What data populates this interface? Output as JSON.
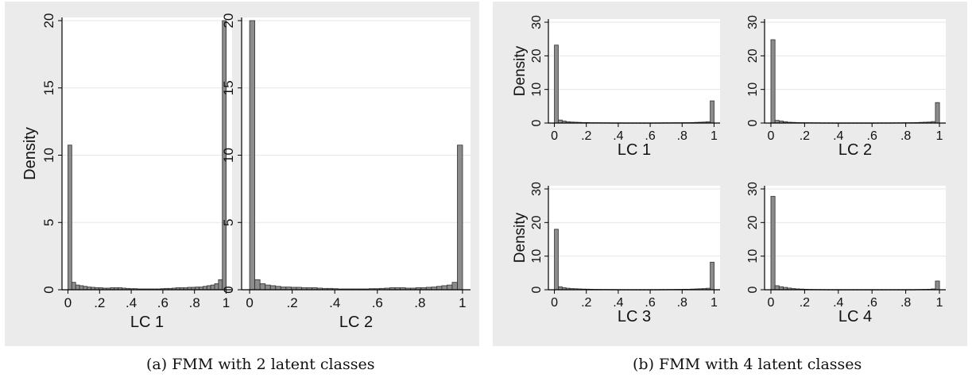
{
  "figure": {
    "caption_a": "(a) FMM with 2 latent classes",
    "caption_b": "(b) FMM with 4 latent classes",
    "colors": {
      "panel_bg": "#ebebeb",
      "plot_bg": "#ffffff",
      "bar_fill": "#8c8c8c",
      "bar_stroke": "#303030",
      "grid": "#e6e6e6"
    }
  },
  "chart_data": [
    {
      "type": "bar",
      "group": "a",
      "xlabel": "LC 1",
      "ylabel": "Density",
      "xlim": [
        0,
        1
      ],
      "ylim": [
        0,
        20
      ],
      "yticks": [
        0,
        5,
        10,
        15,
        20
      ],
      "ytick_labels": [
        "0",
        "5",
        "10",
        "15",
        "20"
      ],
      "xticks": [
        0,
        0.2,
        0.4,
        0.6,
        0.8,
        1
      ],
      "xtick_labels": [
        "0",
        ".2",
        ".4",
        ".6",
        ".8",
        "1"
      ],
      "grid": true,
      "bin_width": 0.0244,
      "values": [
        10.75,
        0.55,
        0.35,
        0.3,
        0.25,
        0.2,
        0.18,
        0.15,
        0.15,
        0.12,
        0.12,
        0.15,
        0.15,
        0.15,
        0.12,
        0.1,
        0.08,
        0.08,
        0.06,
        0.06,
        0.06,
        0.06,
        0.06,
        0.06,
        0.08,
        0.1,
        0.1,
        0.12,
        0.15,
        0.15,
        0.15,
        0.18,
        0.18,
        0.2,
        0.2,
        0.25,
        0.3,
        0.35,
        0.45,
        0.75,
        20.0
      ]
    },
    {
      "type": "bar",
      "group": "a",
      "xlabel": "LC 2",
      "ylabel": "",
      "xlim": [
        0,
        1
      ],
      "ylim": [
        0,
        20
      ],
      "yticks": [
        0,
        5,
        10,
        15,
        20
      ],
      "ytick_labels": [
        "0",
        "5",
        "10",
        "15",
        "20"
      ],
      "xticks": [
        0,
        0.2,
        0.4,
        0.6,
        0.8,
        1
      ],
      "xtick_labels": [
        "0",
        ".2",
        ".4",
        ".6",
        ".8",
        "1"
      ],
      "grid": true,
      "bin_width": 0.0244,
      "values": [
        20.0,
        0.75,
        0.45,
        0.35,
        0.3,
        0.25,
        0.2,
        0.2,
        0.18,
        0.18,
        0.15,
        0.15,
        0.15,
        0.12,
        0.1,
        0.1,
        0.08,
        0.06,
        0.06,
        0.06,
        0.06,
        0.06,
        0.06,
        0.08,
        0.08,
        0.1,
        0.12,
        0.15,
        0.15,
        0.15,
        0.12,
        0.12,
        0.15,
        0.15,
        0.18,
        0.2,
        0.25,
        0.3,
        0.35,
        0.55,
        10.75
      ]
    },
    {
      "type": "bar",
      "group": "b",
      "xlabel": "LC 1",
      "ylabel": "Density",
      "xlim": [
        0,
        1
      ],
      "ylim": [
        0,
        30
      ],
      "yticks": [
        0,
        10,
        20,
        30
      ],
      "ytick_labels": [
        "0",
        "10",
        "20",
        "30"
      ],
      "xticks": [
        0,
        0.2,
        0.4,
        0.6,
        0.8,
        1
      ],
      "xtick_labels": [
        "0",
        ".2",
        ".4",
        ".6",
        ".8",
        "1"
      ],
      "grid": true,
      "bin_width": 0.0244,
      "values": [
        23.2,
        0.9,
        0.6,
        0.4,
        0.3,
        0.25,
        0.2,
        0.15,
        0.15,
        0.1,
        0.1,
        0.1,
        0.08,
        0.08,
        0.06,
        0.06,
        0.06,
        0.06,
        0.05,
        0.05,
        0.05,
        0.05,
        0.05,
        0.05,
        0.05,
        0.06,
        0.06,
        0.06,
        0.08,
        0.08,
        0.1,
        0.1,
        0.1,
        0.12,
        0.12,
        0.15,
        0.2,
        0.25,
        0.3,
        0.4,
        6.6
      ]
    },
    {
      "type": "bar",
      "group": "b",
      "xlabel": "LC 2",
      "ylabel": "",
      "xlim": [
        0,
        1
      ],
      "ylim": [
        0,
        30
      ],
      "yticks": [
        0,
        10,
        20,
        30
      ],
      "ytick_labels": [
        "0",
        "10",
        "20",
        "30"
      ],
      "xticks": [
        0,
        0.2,
        0.4,
        0.6,
        0.8,
        1
      ],
      "xtick_labels": [
        "0",
        ".2",
        ".4",
        ".6",
        ".8",
        "1"
      ],
      "grid": true,
      "bin_width": 0.0244,
      "values": [
        24.8,
        0.8,
        0.6,
        0.4,
        0.25,
        0.2,
        0.15,
        0.12,
        0.1,
        0.1,
        0.08,
        0.08,
        0.06,
        0.06,
        0.05,
        0.05,
        0.05,
        0.05,
        0.05,
        0.05,
        0.05,
        0.05,
        0.05,
        0.05,
        0.05,
        0.05,
        0.05,
        0.06,
        0.06,
        0.06,
        0.08,
        0.08,
        0.1,
        0.1,
        0.12,
        0.15,
        0.2,
        0.25,
        0.3,
        0.45,
        6.1
      ]
    },
    {
      "type": "bar",
      "group": "b",
      "xlabel": "LC 3",
      "ylabel": "Density",
      "xlim": [
        0,
        1
      ],
      "ylim": [
        0,
        30
      ],
      "yticks": [
        0,
        10,
        20,
        30
      ],
      "ytick_labels": [
        "0",
        "10",
        "20",
        "30"
      ],
      "xticks": [
        0,
        0.2,
        0.4,
        0.6,
        0.8,
        1
      ],
      "xtick_labels": [
        "0",
        ".2",
        ".4",
        ".6",
        ".8",
        "1"
      ],
      "grid": true,
      "bin_width": 0.0244,
      "values": [
        18.0,
        0.9,
        0.6,
        0.45,
        0.35,
        0.3,
        0.25,
        0.2,
        0.18,
        0.15,
        0.12,
        0.12,
        0.1,
        0.1,
        0.08,
        0.08,
        0.06,
        0.06,
        0.06,
        0.05,
        0.05,
        0.05,
        0.05,
        0.05,
        0.06,
        0.06,
        0.06,
        0.08,
        0.08,
        0.1,
        0.1,
        0.12,
        0.12,
        0.15,
        0.15,
        0.2,
        0.25,
        0.3,
        0.35,
        0.45,
        8.2
      ]
    },
    {
      "type": "bar",
      "group": "b",
      "xlabel": "LC 4",
      "ylabel": "",
      "xlim": [
        0,
        1
      ],
      "ylim": [
        0,
        30
      ],
      "yticks": [
        0,
        10,
        20,
        30
      ],
      "ytick_labels": [
        "0",
        "10",
        "20",
        "30"
      ],
      "xticks": [
        0,
        0.2,
        0.4,
        0.6,
        0.8,
        1
      ],
      "xtick_labels": [
        "0",
        ".2",
        ".4",
        ".6",
        ".8",
        "1"
      ],
      "grid": true,
      "bin_width": 0.0244,
      "values": [
        27.8,
        1.2,
        0.9,
        0.7,
        0.5,
        0.35,
        0.25,
        0.2,
        0.15,
        0.12,
        0.1,
        0.08,
        0.08,
        0.06,
        0.06,
        0.05,
        0.05,
        0.05,
        0.05,
        0.05,
        0.05,
        0.05,
        0.05,
        0.05,
        0.05,
        0.05,
        0.05,
        0.05,
        0.05,
        0.05,
        0.05,
        0.05,
        0.05,
        0.06,
        0.06,
        0.08,
        0.1,
        0.12,
        0.15,
        0.25,
        2.6
      ]
    }
  ]
}
